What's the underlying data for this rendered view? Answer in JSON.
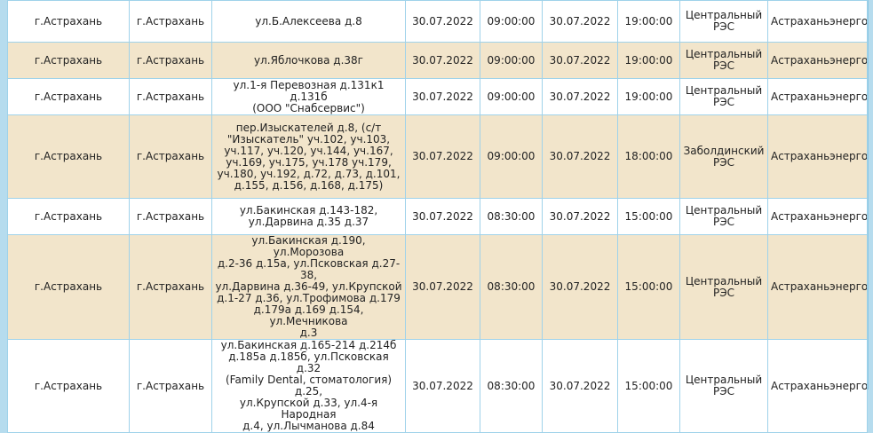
{
  "rows": [
    {
      "city": "г.Астрахань",
      "locality": "г.Астрахань",
      "address": "ул.Б.Алексеева д.8",
      "date_from": "30.07.2022",
      "time_from": "09:00:00",
      "date_to": "30.07.2022",
      "time_to": "19:00:00",
      "res": "Центральный\nРЭС",
      "org": "Астраханьэнерго"
    },
    {
      "city": "г.Астрахань",
      "locality": "г.Астрахань",
      "address": "ул.Яблочкова д.38г",
      "date_from": "30.07.2022",
      "time_from": "09:00:00",
      "date_to": "30.07.2022",
      "time_to": "19:00:00",
      "res": "Центральный\nРЭС",
      "org": "Астраханьэнерго"
    },
    {
      "city": "г.Астрахань",
      "locality": "г.Астрахань",
      "address": "ул.1-я Перевозная д.131к1 д.131б\n(ООО \"Снабсервис\")",
      "date_from": "30.07.2022",
      "time_from": "09:00:00",
      "date_to": "30.07.2022",
      "time_to": "19:00:00",
      "res": "Центральный\nРЭС",
      "org": "Астраханьэнерго"
    },
    {
      "city": "г.Астрахань",
      "locality": "г.Астрахань",
      "address": "пер.Изыскателей д.8, (с/т\n\"Изыскатель\" уч.102, уч.103,\nуч.117, уч.120, уч.144, уч.167,\nуч.169, уч.175, уч.178 уч.179,\nуч.180, уч.192, д.72, д.73, д.101,\nд.155, д.156, д.168, д.175)",
      "date_from": "30.07.2022",
      "time_from": "09:00:00",
      "date_to": "30.07.2022",
      "time_to": "18:00:00",
      "res": "Заболдинский\nРЭС",
      "org": "Астраханьэнерго"
    },
    {
      "city": "г.Астрахань",
      "locality": "г.Астрахань",
      "address": "ул.Бакинская д.143-182,\nул.Дарвина д.35 д.37",
      "date_from": "30.07.2022",
      "time_from": "08:30:00",
      "date_to": "30.07.2022",
      "time_to": "15:00:00",
      "res": "Центральный\nРЭС",
      "org": "Астраханьэнерго"
    },
    {
      "city": "г.Астрахань",
      "locality": "г.Астрахань",
      "address": "ул.Бакинская д.190, ул.Морозова\nд.2-36 д.15а, ул.Псковская д.27-38,\nул.Дарвина д.36-49, ул.Крупской\nд.1-27 д.36, ул.Трофимова д.179\nд.179а д.169 д.154, ул.Мечникова\nд.3",
      "date_from": "30.07.2022",
      "time_from": "08:30:00",
      "date_to": "30.07.2022",
      "time_to": "15:00:00",
      "res": "Центральный\nРЭС",
      "org": "Астраханьэнерго"
    },
    {
      "city": "г.Астрахань",
      "locality": "г.Астрахань",
      "address": "ул.Бакинская д.165-214 д.214б\nд.185а д.185б, ул.Псковская д.32\n(Family Dental, стоматология) д.25,\nул.Крупской д.33, ул.4-я Народная\nд.4, ул.Лычманова д.84",
      "date_from": "30.07.2022",
      "time_from": "08:30:00",
      "date_to": "30.07.2022",
      "time_to": "15:00:00",
      "res": "Центральный\nРЭС",
      "org": "Астраханьэнерго"
    }
  ]
}
